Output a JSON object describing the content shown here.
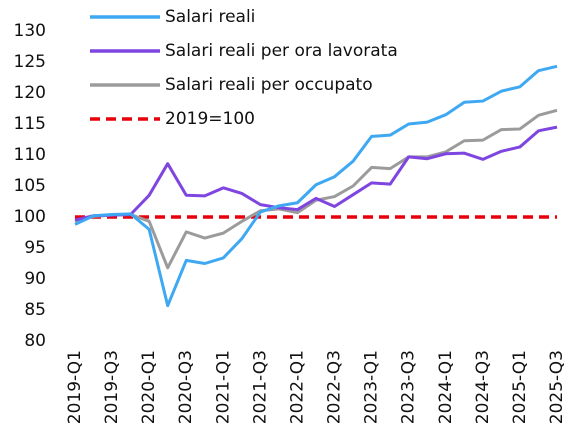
{
  "chart_data": {
    "type": "line",
    "categories": [
      "2019-Q1",
      null,
      "2019-Q3",
      null,
      "2020-Q1",
      null,
      "2020-Q3",
      null,
      "2021-Q1",
      null,
      "2021-Q3",
      null,
      "2022-Q1",
      null,
      "2022-Q3",
      null,
      "2023-Q1",
      null,
      "2023-Q3",
      null,
      "2024-Q1",
      null,
      "2024-Q3",
      null,
      "2025-Q1",
      null,
      "2025-Q3"
    ],
    "series": [
      {
        "name": "Salari reali",
        "color": "#3ea8f2",
        "values": [
          98.8,
          100.2,
          100.4,
          100.5,
          98,
          85.7,
          93,
          92.5,
          93.4,
          96.5,
          100.8,
          101.8,
          102.3,
          105.2,
          106.5,
          109,
          113,
          113.2,
          115,
          115.3,
          116.5,
          118.5,
          118.7,
          120.3,
          121,
          123.6,
          124.3
        ]
      },
      {
        "name": "Salari reali per ora lavorata",
        "color": "#7f45e0",
        "values": [
          99.5,
          100.2,
          100.3,
          100.4,
          103.5,
          108.6,
          103.5,
          103.4,
          104.7,
          103.8,
          102,
          101.5,
          101.2,
          103,
          101.7,
          103.6,
          105.5,
          105.3,
          109.7,
          109.4,
          110.2,
          110.3,
          109.3,
          110.6,
          111.3,
          113.9,
          114.5
        ]
      },
      {
        "name": "Salari reali per occupato",
        "color": "#9b9b9b",
        "values": [
          99.3,
          100.1,
          100.3,
          100.4,
          99.3,
          91.8,
          97.6,
          96.6,
          97.4,
          99.3,
          101,
          101.3,
          100.7,
          102.7,
          103.3,
          105,
          108,
          107.8,
          109.7,
          109.7,
          110.5,
          112.3,
          112.4,
          114.1,
          114.2,
          116.4,
          117.2
        ]
      },
      {
        "name": "2019=100",
        "color": "#e8000b",
        "dashed": true,
        "values": [
          100,
          100,
          100,
          100,
          100,
          100,
          100,
          100,
          100,
          100,
          100,
          100,
          100,
          100,
          100,
          100,
          100,
          100,
          100,
          100,
          100,
          100,
          100,
          100,
          100,
          100,
          100
        ]
      }
    ],
    "ylim": [
      80,
      130
    ],
    "yticks": [
      80,
      85,
      90,
      95,
      100,
      105,
      110,
      115,
      120,
      125,
      130
    ]
  }
}
